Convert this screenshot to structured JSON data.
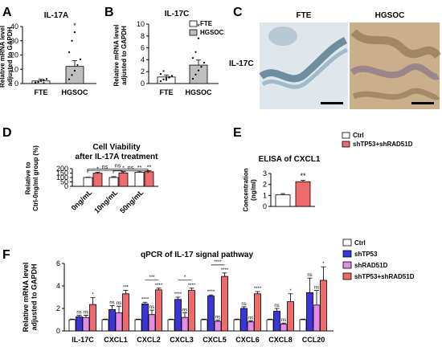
{
  "panels": {
    "A": {
      "letter": "A",
      "title": "IL-17A"
    },
    "B": {
      "letter": "B",
      "title": "IL-17C"
    },
    "C": {
      "letter": "C",
      "col1": "FTE",
      "col2": "HGSOC",
      "row": "IL-17C"
    },
    "D": {
      "letter": "D",
      "title1": "Cell Viability",
      "title2": "after IL-17A treatment"
    },
    "E": {
      "letter": "E",
      "title": "ELISA of CXCL1"
    },
    "F": {
      "letter": "F",
      "title": "qPCR of IL-17 signal pathway"
    }
  },
  "colors": {
    "white": "#ffffff",
    "red": "#ef6b6b",
    "blue": "#3a35d8",
    "pink": "#e58ae8",
    "grey": "#bfbfbf"
  },
  "chart_data": [
    {
      "id": "A",
      "type": "bar",
      "title": "IL-17A",
      "ylabel": "Relative mRNA level adjusted to GAPDH",
      "ylabel_lines": [
        "Relative mRNA level",
        "adjusted to GAPDH"
      ],
      "categories": [
        "FTE",
        "HGSOC"
      ],
      "values": [
        1.8,
        12
      ],
      "errors": [
        1.2,
        4
      ],
      "ylim": [
        0,
        40
      ],
      "yticks": [
        "0",
        "10",
        "20",
        "30",
        "40"
      ],
      "significance": "*",
      "points": [
        [
          0.5,
          1.2,
          1.8,
          2.5,
          3.2,
          0.8,
          1.0,
          2.0,
          0.3
        ],
        [
          3,
          6,
          9,
          13,
          17,
          22,
          30,
          36
        ]
      ]
    },
    {
      "id": "B",
      "type": "bar",
      "title": "IL-17C",
      "ylabel": "Relative mRNA level adjusted to GAPDH",
      "ylabel_lines": [
        "Relative mRNA level",
        "adjusted to GAPDH"
      ],
      "categories": [
        "FTE",
        "HGSOC"
      ],
      "values": [
        1.1,
        3.1
      ],
      "errors": [
        0.35,
        0.85
      ],
      "ylim": [
        0,
        10
      ],
      "yticks": [
        "0",
        "2",
        "4",
        "6",
        "8",
        "10"
      ],
      "significance": "*",
      "legend": [
        "FTE",
        "HGSOC"
      ],
      "points": [
        [
          0.4,
          0.7,
          0.9,
          1.1,
          1.3,
          1.6,
          2.1,
          0.6,
          1.0
        ],
        [
          0.8,
          1.5,
          2.2,
          2.8,
          3.5,
          4.3,
          5.3,
          7.6
        ]
      ]
    },
    {
      "id": "D",
      "type": "bar",
      "ylabel": "Relative to Ctrl-0ng/ml group (%)",
      "ylabel_lines": [
        "Relative to",
        "Ctrl-0ng/ml group (%)"
      ],
      "categories": [
        "0ng/mL",
        "10ng/mL",
        "50ng/mL"
      ],
      "series": [
        {
          "values": [
            100,
            100,
            160
          ],
          "errors": [
            3,
            10,
            12
          ]
        },
        {
          "values": [
            148,
            152,
            165
          ],
          "errors": [
            10,
            14,
            14
          ]
        }
      ],
      "ylim": [
        0,
        200
      ],
      "yticks": [
        "0",
        "50",
        "100",
        "150",
        "200"
      ],
      "labels": [
        [
          "",
          "*"
        ],
        [
          "",
          "*"
        ],
        [
          "**",
          "**"
        ]
      ],
      "brackets": [
        "ns",
        "ns",
        "ns"
      ]
    },
    {
      "id": "E",
      "type": "bar",
      "ylabel": "Concentration (ng/ml)",
      "ylabel_lines": [
        "Concentration",
        "(ng/ml)"
      ],
      "values": [
        1.05,
        2.25
      ],
      "errors": [
        0.12,
        0.13
      ],
      "ylim": [
        0,
        3
      ],
      "yticks": [
        "0",
        "1",
        "2",
        "3"
      ],
      "significance": "**",
      "legend": [
        "Ctrl",
        "shTP53+shRAD51D"
      ]
    },
    {
      "id": "F",
      "type": "bar",
      "ylabel": "Relative mRNA level adjusted to GAPDH",
      "ylabel_lines": [
        "Relative mRNA level",
        "adjusted to GAPDH"
      ],
      "categories": [
        "IL-17C",
        "CXCL1",
        "CXCL2",
        "CXCL3",
        "CXCL5",
        "CXCL6",
        "CXCL8",
        "CCL20"
      ],
      "legend": [
        "Ctrl",
        "shTP53",
        "shRAD51D",
        "shTP53+shRAD51D"
      ],
      "series": [
        {
          "name": "Ctrl",
          "values": [
            1,
            1,
            1,
            1,
            1,
            1,
            1,
            1
          ],
          "errors": [
            0.05,
            0.05,
            0.05,
            0.05,
            0.05,
            0.05,
            0.05,
            0.05
          ]
        },
        {
          "name": "shTP53",
          "values": [
            1.25,
            1.9,
            2.4,
            2.8,
            3.1,
            2.0,
            1.75,
            3.4
          ],
          "errors": [
            0.15,
            0.35,
            0.15,
            0.2,
            0.1,
            0.15,
            0.25,
            1.3
          ]
        },
        {
          "name": "shRAD51D",
          "values": [
            1.2,
            1.6,
            1.45,
            1.2,
            0.85,
            0.8,
            0.6,
            2.3
          ],
          "errors": [
            0.2,
            0.6,
            0.4,
            0.4,
            0.1,
            0.1,
            0.1,
            1.3
          ]
        },
        {
          "name": "shTP53+shRAD51D",
          "values": [
            2.35,
            3.3,
            3.65,
            3.6,
            4.85,
            3.3,
            2.6,
            4.5
          ],
          "errors": [
            0.6,
            0.3,
            0.15,
            0.2,
            0.3,
            0.2,
            0.7,
            1.2
          ]
        }
      ],
      "labels": [
        [
          "ns",
          "ns",
          "*"
        ],
        [
          "ns",
          "ns",
          "***"
        ],
        [
          "****",
          "ns",
          "****"
        ],
        [
          "****",
          "ns",
          "****"
        ],
        [
          "****",
          "ns",
          "****"
        ],
        [
          "ns",
          "ns",
          "****"
        ],
        [
          "ns",
          "ns",
          "*"
        ],
        [
          "ns",
          "ns",
          "*"
        ]
      ],
      "brackets": [
        {
          "group": 2,
          "text": "***"
        },
        {
          "group": 3,
          "text": "*"
        },
        {
          "group": 4,
          "text": "****"
        }
      ],
      "ylim": [
        0,
        6
      ],
      "yticks": [
        "0",
        "2",
        "4",
        "6"
      ]
    }
  ]
}
